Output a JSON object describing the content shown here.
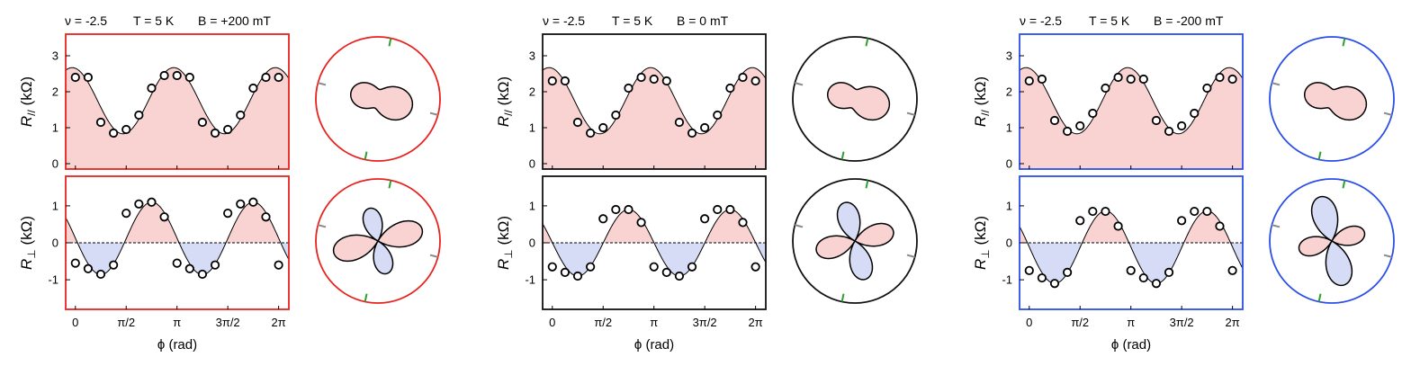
{
  "figure": {
    "x_axis_label": "ϕ (rad)",
    "x_ticks": [
      "0",
      "π/2",
      "π",
      "3π/2",
      "2π"
    ],
    "x_tick_values": [
      0,
      1.5708,
      3.1416,
      4.7124,
      6.2832
    ],
    "xlim": [
      -0.3,
      6.6
    ],
    "r_par": {
      "ylabel_sym": "R",
      "ylabel_sub": "//",
      "ylabel_unit": " (kΩ)",
      "ylim": [
        -0.15,
        3.6
      ],
      "yticks": [
        "0",
        "1",
        "2",
        "3"
      ],
      "ytick_values": [
        0,
        1,
        2,
        3
      ]
    },
    "r_perp": {
      "ylabel_sym": "R",
      "ylabel_sub": "⊥",
      "ylabel_unit": " (kΩ)",
      "ylim": [
        -1.8,
        1.8
      ],
      "yticks": [
        "-1",
        "0",
        "1"
      ],
      "ytick_values": [
        -1,
        0,
        1
      ]
    },
    "colors": {
      "fill_pos": "#f9d2d2",
      "fill_neg": "#d6dcf5",
      "curve": "#000000",
      "tick_green": "#2e9e2e",
      "tick_gray": "#8a8a8a"
    }
  },
  "chart_data": [
    {
      "panel": "B = +200 mT",
      "nu_label": "ν = -2.5",
      "T_label": "T = 5 K",
      "B_label": "B = +200 mT",
      "frame_color": "#e8221e",
      "r_par": {
        "type": "line+scatter",
        "x": [
          0.0,
          0.393,
          0.785,
          1.178,
          1.571,
          1.963,
          2.356,
          2.749,
          3.142,
          3.534,
          3.927,
          4.32,
          4.712,
          5.105,
          5.498,
          5.89,
          6.283
        ],
        "y": [
          2.4,
          2.4,
          1.15,
          0.85,
          0.95,
          1.35,
          2.1,
          2.45,
          2.45,
          2.4,
          1.15,
          0.85,
          0.95,
          1.35,
          2.1,
          2.4,
          2.4
        ],
        "fit": {
          "mean": 1.75,
          "amp": 0.92,
          "period": 3.1416,
          "phase": -0.1
        }
      },
      "r_perp": {
        "type": "line+scatter",
        "x": [
          0.0,
          0.393,
          0.785,
          1.178,
          1.571,
          1.963,
          2.356,
          2.749,
          3.142,
          3.534,
          3.927,
          4.32,
          4.712,
          5.105,
          5.498,
          5.89,
          6.283
        ],
        "y": [
          -0.55,
          -0.7,
          -0.85,
          -0.6,
          0.8,
          1.05,
          1.1,
          0.7,
          -0.55,
          -0.7,
          -0.85,
          -0.6,
          0.8,
          1.05,
          1.1,
          0.7,
          -0.6
        ],
        "fit": {
          "mean": 0.12,
          "amp": 0.98,
          "period": 3.1416,
          "phase": 2.36
        }
      },
      "polar_par": {
        "mean": 1.75,
        "amp": 0.92,
        "phase": 0.0,
        "rotation_deg": -15
      },
      "polar_perp": {
        "amp": 1.0,
        "rotation_deg": -30,
        "shift": 0.15
      }
    },
    {
      "panel": "B = 0 mT",
      "nu_label": "ν = -2.5",
      "T_label": "T = 5 K",
      "B_label": "B = 0 mT",
      "frame_color": "#111111",
      "r_par": {
        "type": "line+scatter",
        "x": [
          0.0,
          0.393,
          0.785,
          1.178,
          1.571,
          1.963,
          2.356,
          2.749,
          3.142,
          3.534,
          3.927,
          4.32,
          4.712,
          5.105,
          5.498,
          5.89,
          6.283
        ],
        "y": [
          2.3,
          2.3,
          1.15,
          0.85,
          1.0,
          1.35,
          2.1,
          2.4,
          2.35,
          2.3,
          1.15,
          0.85,
          1.0,
          1.35,
          2.1,
          2.4,
          2.3
        ],
        "fit": {
          "mean": 1.75,
          "amp": 0.92,
          "period": 3.1416,
          "phase": -0.1
        }
      },
      "r_perp": {
        "type": "line+scatter",
        "x": [
          0.0,
          0.393,
          0.785,
          1.178,
          1.571,
          1.963,
          2.356,
          2.749,
          3.142,
          3.534,
          3.927,
          4.32,
          4.712,
          5.105,
          5.498,
          5.89,
          6.283
        ],
        "y": [
          -0.65,
          -0.8,
          -0.9,
          -0.65,
          0.65,
          0.9,
          0.9,
          0.55,
          -0.65,
          -0.8,
          -0.9,
          -0.65,
          0.65,
          0.9,
          0.9,
          0.55,
          -0.65
        ],
        "fit": {
          "mean": 0.0,
          "amp": 0.9,
          "period": 3.1416,
          "phase": 2.36
        }
      },
      "polar_par": {
        "mean": 1.75,
        "amp": 0.92,
        "phase": 0.0,
        "rotation_deg": -15
      },
      "polar_perp": {
        "amp": 1.0,
        "rotation_deg": -30,
        "shift": 0.0
      }
    },
    {
      "panel": "B = -200 mT",
      "nu_label": "ν = -2.5",
      "T_label": "T = 5 K",
      "B_label": "B = -200 mT",
      "frame_color": "#2b4ee8",
      "r_par": {
        "type": "line+scatter",
        "x": [
          0.0,
          0.393,
          0.785,
          1.178,
          1.571,
          1.963,
          2.356,
          2.749,
          3.142,
          3.534,
          3.927,
          4.32,
          4.712,
          5.105,
          5.498,
          5.89,
          6.283
        ],
        "y": [
          2.3,
          2.35,
          1.2,
          0.9,
          1.05,
          1.4,
          2.1,
          2.4,
          2.35,
          2.35,
          1.2,
          0.9,
          1.05,
          1.4,
          2.1,
          2.4,
          2.35
        ],
        "fit": {
          "mean": 1.75,
          "amp": 0.92,
          "period": 3.1416,
          "phase": -0.1
        }
      },
      "r_perp": {
        "type": "line+scatter",
        "x": [
          0.0,
          0.393,
          0.785,
          1.178,
          1.571,
          1.963,
          2.356,
          2.749,
          3.142,
          3.534,
          3.927,
          4.32,
          4.712,
          5.105,
          5.498,
          5.89,
          6.283
        ],
        "y": [
          -0.75,
          -0.95,
          -1.1,
          -0.8,
          0.6,
          0.85,
          0.85,
          0.45,
          -0.75,
          -0.95,
          -1.1,
          -0.8,
          0.6,
          0.85,
          0.85,
          0.45,
          -0.75
        ],
        "fit": {
          "mean": -0.12,
          "amp": 0.98,
          "period": 3.1416,
          "phase": 2.36
        }
      },
      "polar_par": {
        "mean": 1.75,
        "amp": 0.92,
        "phase": 0.0,
        "rotation_deg": -15
      },
      "polar_perp": {
        "amp": 1.0,
        "rotation_deg": -30,
        "shift": -0.15
      }
    }
  ]
}
